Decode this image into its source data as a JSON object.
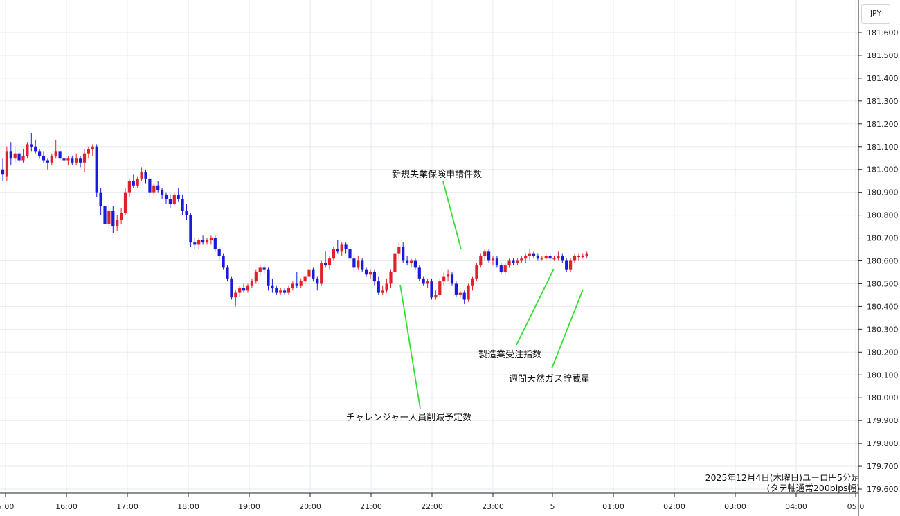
{
  "currency": "JPY",
  "caption": {
    "line1": "2025年12月4日(木曜日)ユーロ円5分足",
    "line2": "(タテ軸通常200pips幅)"
  },
  "colors": {
    "up": "#e0202a",
    "down": "#1a1adb",
    "grid": "#e6ebf0",
    "annotation_line": "#33e033",
    "axis": "#222222"
  },
  "chart_data": {
    "type": "candlestick",
    "y_axis": {
      "min": 179.6,
      "max": 181.6,
      "ticks": [
        "179.600",
        "179.700",
        "179.800",
        "179.900",
        "180.000",
        "180.100",
        "180.200",
        "180.300",
        "180.400",
        "180.500",
        "180.600",
        "180.700",
        "180.800",
        "180.900",
        "181.000",
        "181.100",
        "181.200",
        "181.300",
        "181.400",
        "181.500",
        "181.600"
      ]
    },
    "x_axis": {
      "tick_labels": [
        "5:00",
        "16:00",
        "17:00",
        "18:00",
        "19:00",
        "20:00",
        "21:00",
        "22:00",
        "23:00",
        "5",
        "01:00",
        "02:00",
        "03:00",
        "04:00",
        "05:0"
      ]
    },
    "annotations": [
      {
        "text": "新規失業保険申請件数",
        "time": "22:30"
      },
      {
        "text": "チャレンジャー人員削減予定数",
        "time": "21:30"
      },
      {
        "text": "製造業受注指数",
        "time": "00:00"
      },
      {
        "text": "週間天然ガス貯蔵量",
        "time": "00:30"
      }
    ],
    "candles": [
      [
        181.0,
        181.05,
        180.95,
        180.98
      ],
      [
        180.97,
        181.1,
        180.95,
        181.08
      ],
      [
        181.08,
        181.12,
        181.02,
        181.05
      ],
      [
        181.05,
        181.1,
        181.03,
        181.07
      ],
      [
        181.07,
        181.08,
        181.03,
        181.04
      ],
      [
        181.04,
        181.09,
        181.03,
        181.06
      ],
      [
        181.06,
        181.12,
        181.05,
        181.11
      ],
      [
        181.11,
        181.16,
        181.08,
        181.1
      ],
      [
        181.1,
        181.13,
        181.07,
        181.08
      ],
      [
        181.08,
        181.09,
        181.05,
        181.06
      ],
      [
        181.06,
        181.08,
        181.03,
        181.04
      ],
      [
        181.04,
        181.05,
        181.0,
        181.03
      ],
      [
        181.03,
        181.07,
        181.02,
        181.06
      ],
      [
        181.06,
        181.13,
        181.05,
        181.08
      ],
      [
        181.08,
        181.1,
        181.04,
        181.05
      ],
      [
        181.05,
        181.07,
        181.03,
        181.04
      ],
      [
        181.04,
        181.06,
        181.02,
        181.05
      ],
      [
        181.05,
        181.06,
        181.02,
        181.03
      ],
      [
        181.03,
        181.07,
        181.02,
        181.05
      ],
      [
        181.05,
        181.06,
        181.01,
        181.03
      ],
      [
        181.03,
        181.09,
        180.99,
        181.07
      ],
      [
        181.07,
        181.1,
        181.05,
        181.09
      ],
      [
        181.09,
        181.11,
        181.06,
        181.1
      ],
      [
        181.1,
        181.11,
        180.88,
        180.9
      ],
      [
        180.9,
        180.92,
        180.8,
        180.84
      ],
      [
        180.84,
        180.86,
        180.7,
        180.76
      ],
      [
        180.76,
        180.84,
        180.74,
        180.82
      ],
      [
        180.82,
        180.84,
        180.72,
        180.75
      ],
      [
        180.75,
        180.8,
        180.73,
        180.78
      ],
      [
        180.78,
        180.83,
        180.76,
        180.81
      ],
      [
        180.81,
        180.92,
        180.8,
        180.9
      ],
      [
        180.9,
        180.96,
        180.88,
        180.95
      ],
      [
        180.95,
        180.98,
        180.92,
        180.93
      ],
      [
        180.93,
        180.97,
        180.92,
        180.96
      ],
      [
        180.96,
        181.01,
        180.95,
        180.99
      ],
      [
        180.99,
        181.0,
        180.94,
        180.96
      ],
      [
        180.96,
        180.98,
        180.88,
        180.9
      ],
      [
        180.9,
        180.94,
        180.89,
        180.93
      ],
      [
        180.93,
        180.95,
        180.9,
        180.91
      ],
      [
        180.91,
        180.92,
        180.87,
        180.89
      ],
      [
        180.89,
        180.9,
        180.85,
        180.87
      ],
      [
        180.87,
        180.89,
        180.83,
        180.85
      ],
      [
        180.85,
        180.9,
        180.84,
        180.89
      ],
      [
        180.89,
        180.92,
        180.86,
        180.87
      ],
      [
        180.87,
        180.89,
        180.8,
        180.82
      ],
      [
        180.82,
        180.85,
        180.78,
        180.8
      ],
      [
        180.8,
        180.81,
        180.66,
        180.68
      ],
      [
        180.68,
        180.7,
        180.65,
        180.67
      ],
      [
        180.67,
        180.7,
        180.65,
        180.69
      ],
      [
        180.69,
        180.71,
        180.67,
        180.68
      ],
      [
        180.68,
        180.7,
        180.67,
        180.69
      ],
      [
        180.69,
        180.71,
        180.67,
        180.7
      ],
      [
        180.7,
        180.71,
        180.64,
        180.65
      ],
      [
        180.65,
        180.66,
        180.6,
        180.62
      ],
      [
        180.62,
        180.63,
        180.56,
        180.57
      ],
      [
        180.57,
        180.58,
        180.51,
        180.52
      ],
      [
        180.52,
        180.53,
        180.43,
        180.44
      ],
      [
        180.44,
        180.47,
        180.4,
        180.46
      ],
      [
        180.46,
        180.49,
        180.44,
        180.48
      ],
      [
        180.48,
        180.5,
        180.46,
        180.47
      ],
      [
        180.47,
        180.5,
        180.46,
        180.49
      ],
      [
        180.49,
        180.52,
        180.48,
        180.51
      ],
      [
        180.51,
        180.56,
        180.5,
        180.55
      ],
      [
        180.55,
        180.58,
        180.53,
        180.57
      ],
      [
        180.57,
        180.58,
        180.54,
        180.56
      ],
      [
        180.56,
        180.57,
        180.47,
        180.49
      ],
      [
        180.49,
        180.52,
        180.46,
        180.48
      ],
      [
        180.48,
        180.49,
        180.45,
        180.46
      ],
      [
        180.46,
        180.48,
        180.45,
        180.47
      ],
      [
        180.47,
        180.48,
        180.45,
        180.46
      ],
      [
        180.46,
        180.49,
        180.45,
        180.48
      ],
      [
        180.48,
        180.51,
        180.47,
        180.5
      ],
      [
        180.5,
        180.55,
        180.48,
        180.49
      ],
      [
        180.49,
        180.52,
        180.48,
        180.51
      ],
      [
        180.51,
        180.54,
        180.49,
        180.53
      ],
      [
        180.53,
        180.59,
        180.52,
        180.56
      ],
      [
        180.56,
        180.57,
        180.51,
        180.52
      ],
      [
        180.52,
        180.53,
        180.47,
        180.5
      ],
      [
        180.5,
        180.6,
        180.49,
        180.59
      ],
      [
        180.59,
        180.64,
        180.57,
        180.58
      ],
      [
        180.58,
        180.62,
        180.56,
        180.61
      ],
      [
        180.61,
        180.66,
        180.6,
        180.65
      ],
      [
        180.65,
        180.69,
        180.63,
        180.64
      ],
      [
        180.64,
        180.68,
        180.62,
        180.67
      ],
      [
        180.67,
        180.68,
        180.63,
        180.65
      ],
      [
        180.65,
        180.66,
        180.58,
        180.61
      ],
      [
        180.61,
        180.63,
        180.55,
        180.57
      ],
      [
        180.57,
        180.62,
        180.56,
        180.6
      ],
      [
        180.6,
        180.61,
        180.55,
        180.56
      ],
      [
        180.56,
        180.57,
        180.53,
        180.54
      ],
      [
        180.54,
        180.56,
        180.52,
        180.55
      ],
      [
        180.55,
        180.56,
        180.49,
        180.51
      ],
      [
        180.51,
        180.53,
        180.45,
        180.46
      ],
      [
        180.46,
        180.49,
        180.45,
        180.47
      ],
      [
        180.47,
        180.52,
        180.46,
        180.5
      ],
      [
        180.5,
        180.56,
        180.48,
        180.55
      ],
      [
        180.55,
        180.64,
        180.54,
        180.63
      ],
      [
        180.63,
        180.68,
        180.61,
        180.66
      ],
      [
        180.66,
        180.68,
        180.59,
        180.6
      ],
      [
        180.6,
        180.62,
        180.58,
        180.59
      ],
      [
        180.59,
        180.61,
        180.57,
        180.6
      ],
      [
        180.6,
        180.61,
        180.56,
        180.57
      ],
      [
        180.57,
        180.58,
        180.51,
        180.52
      ],
      [
        180.52,
        180.53,
        180.49,
        180.5
      ],
      [
        180.5,
        180.52,
        180.48,
        180.51
      ],
      [
        180.51,
        180.52,
        180.43,
        180.44
      ],
      [
        180.44,
        180.47,
        180.43,
        180.45
      ],
      [
        180.45,
        180.52,
        180.44,
        180.51
      ],
      [
        180.51,
        180.55,
        180.49,
        180.53
      ],
      [
        180.53,
        180.56,
        180.51,
        180.54
      ],
      [
        180.54,
        180.55,
        180.49,
        180.5
      ],
      [
        180.5,
        180.51,
        180.44,
        180.45
      ],
      [
        180.45,
        180.47,
        180.44,
        180.46
      ],
      [
        180.46,
        180.47,
        180.41,
        180.43
      ],
      [
        180.43,
        180.5,
        180.42,
        180.49
      ],
      [
        180.49,
        180.53,
        180.47,
        180.52
      ],
      [
        180.52,
        180.59,
        180.51,
        180.58
      ],
      [
        180.58,
        180.63,
        180.57,
        180.62
      ],
      [
        180.62,
        180.65,
        180.6,
        180.64
      ],
      [
        180.64,
        180.65,
        180.59,
        180.6
      ],
      [
        180.6,
        180.62,
        180.58,
        180.61
      ],
      [
        180.61,
        180.62,
        180.57,
        180.58
      ],
      [
        180.58,
        180.59,
        180.54,
        180.55
      ],
      [
        180.55,
        180.59,
        180.54,
        180.58
      ],
      [
        180.58,
        180.61,
        180.57,
        180.6
      ],
      [
        180.6,
        180.61,
        180.58,
        180.59
      ],
      [
        180.59,
        180.61,
        180.58,
        180.6
      ],
      [
        180.6,
        180.62,
        180.59,
        180.61
      ],
      [
        180.61,
        180.63,
        180.59,
        180.62
      ],
      [
        180.62,
        180.65,
        180.6,
        180.63
      ],
      [
        180.63,
        180.64,
        180.61,
        180.62
      ],
      [
        180.62,
        180.63,
        180.6,
        180.61
      ],
      [
        180.61,
        180.62,
        180.6,
        180.61
      ],
      [
        180.61,
        180.63,
        180.6,
        180.62
      ],
      [
        180.62,
        180.63,
        180.6,
        180.61
      ],
      [
        180.61,
        180.62,
        180.6,
        180.61
      ],
      [
        180.61,
        180.64,
        180.6,
        180.62
      ],
      [
        180.62,
        180.63,
        180.59,
        180.6
      ],
      [
        180.6,
        180.61,
        180.55,
        180.56
      ],
      [
        180.56,
        180.61,
        180.55,
        180.6
      ],
      [
        180.6,
        180.63,
        180.59,
        180.62
      ],
      [
        180.62,
        180.63,
        180.6,
        180.62
      ],
      [
        180.62,
        180.63,
        180.61,
        180.62
      ],
      [
        180.62,
        180.64,
        180.61,
        180.63
      ]
    ]
  }
}
